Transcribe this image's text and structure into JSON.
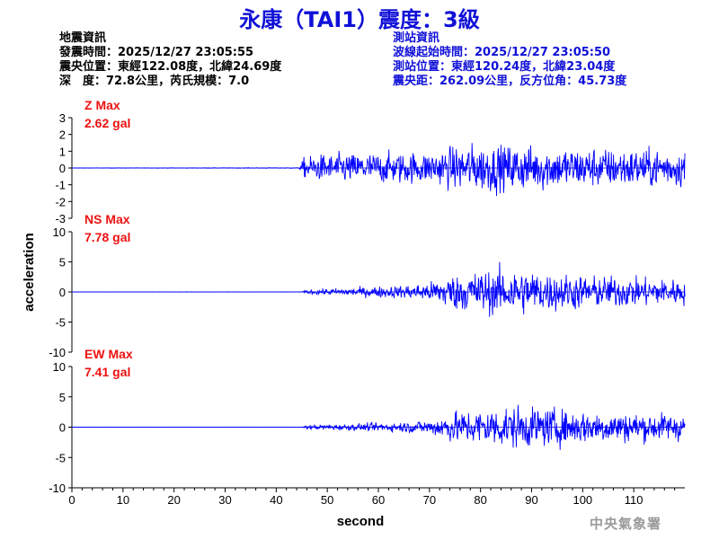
{
  "title": "永康（TAI1）震度：3級",
  "quake_info": {
    "heading": "地震資訊",
    "rows": [
      {
        "label": "發震時間：",
        "value": "2025/12/27 23:05:55"
      },
      {
        "label": "震央位置：",
        "value": "東經122.08度，北緯24.69度"
      },
      {
        "label": "深　度：",
        "value": "72.8公里，芮氏規模：7.0"
      }
    ]
  },
  "station_info": {
    "heading": "測站資訊",
    "rows": [
      {
        "label": "波線起始時間：",
        "value": "2025/12/27 23:05:50"
      },
      {
        "label": "測站位置：",
        "value": "東經120.24度，北緯23.04度"
      },
      {
        "label": "震央距：",
        "value": "262.09公里，反方位角：45.73度"
      }
    ]
  },
  "watermark": "中央氣象署",
  "colors": {
    "title": "#1010d8",
    "trace": "#0000ff",
    "label": "#ee1111",
    "station_text": "#1010d8"
  },
  "chart_data": {
    "type": "line",
    "xlabel": "second",
    "ylabel": "acceleration",
    "xlim": [
      0,
      120
    ],
    "xticks": [
      0,
      10,
      20,
      30,
      40,
      50,
      60,
      70,
      80,
      90,
      100,
      110
    ],
    "grid": false,
    "panels": [
      {
        "name": "Z",
        "label": "Z Max",
        "max_label": "2.62 gal",
        "ylim": [
          -3,
          3
        ],
        "yticks": [
          -3,
          -2,
          -1,
          0,
          1,
          2,
          3
        ],
        "envelope": {
          "t": [
            0,
            44.5,
            45.5,
            50,
            60,
            70,
            76,
            80,
            88,
            95,
            100,
            110,
            120
          ],
          "a": [
            0.01,
            0.02,
            0.55,
            0.7,
            0.75,
            0.8,
            1.1,
            1.2,
            1.15,
            1.05,
            1.0,
            0.95,
            0.9
          ]
        },
        "peak": 2.62
      },
      {
        "name": "NS",
        "label": "NS Max",
        "max_label": "7.78 gal",
        "ylim": [
          -10,
          10
        ],
        "yticks": [
          -10,
          -5,
          0,
          5,
          10
        ],
        "envelope": {
          "t": [
            0,
            45,
            46,
            55,
            65,
            70,
            74,
            80,
            86,
            92,
            100,
            110,
            120
          ],
          "a": [
            0.01,
            0.02,
            0.3,
            0.6,
            0.9,
            1.3,
            2.4,
            3.0,
            3.3,
            2.8,
            2.3,
            2.0,
            1.8
          ]
        },
        "peak": 7.78
      },
      {
        "name": "EW",
        "label": "EW Max",
        "max_label": "7.41 gal",
        "ylim": [
          -10,
          10
        ],
        "yticks": [
          -10,
          -5,
          0,
          5,
          10
        ],
        "envelope": {
          "t": [
            0,
            45,
            46,
            55,
            65,
            70,
            74,
            80,
            86,
            92,
            100,
            110,
            120
          ],
          "a": [
            0.01,
            0.02,
            0.3,
            0.45,
            0.7,
            1.0,
            2.0,
            2.5,
            2.9,
            2.6,
            2.3,
            2.0,
            1.8
          ]
        },
        "peak": 7.41
      }
    ]
  }
}
